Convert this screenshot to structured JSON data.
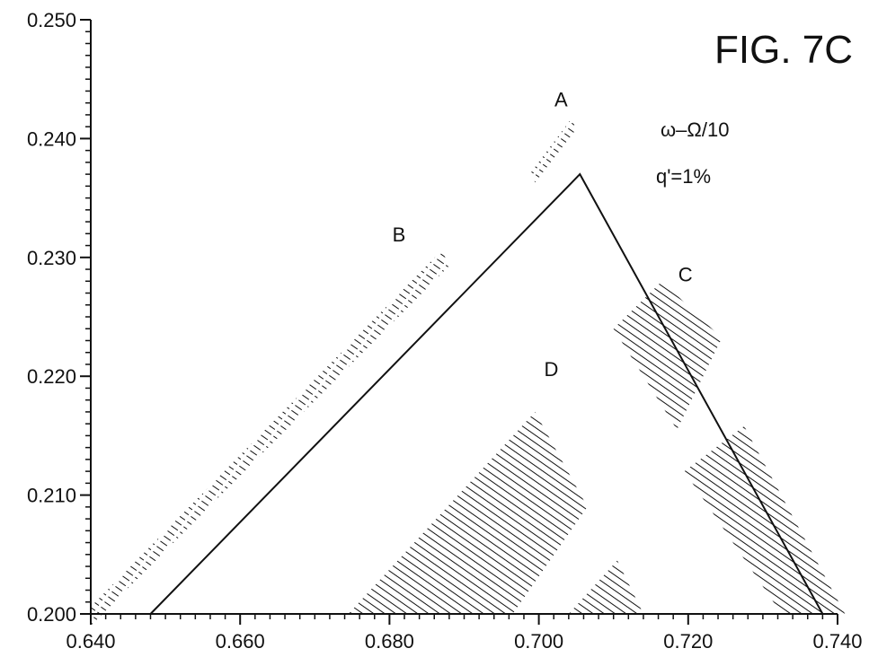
{
  "chart_data": {
    "type": "line",
    "title": "FIG. 7C",
    "xlabel": "",
    "ylabel": "",
    "xlim": [
      0.64,
      0.74
    ],
    "ylim": [
      0.2,
      0.25
    ],
    "xticks": [
      "0.640",
      "0.660",
      "0.680",
      "0.700",
      "0.720",
      "0.740"
    ],
    "yticks": [
      "0.200",
      "0.210",
      "0.220",
      "0.230",
      "0.240",
      "0.250"
    ],
    "grid": false,
    "annotations": [
      "ω–Ω/10",
      "q'=1%"
    ],
    "series": [
      {
        "x": [
          0.648,
          0.7055,
          0.738
        ],
        "y": [
          0.2,
          0.237,
          0.2
        ]
      }
    ],
    "regions": [
      {
        "name": "A",
        "hatch": "dashed",
        "polygon": [
          [
            0.699,
            0.2372
          ],
          [
            0.7045,
            0.2418
          ],
          [
            0.7049,
            0.2407
          ],
          [
            0.6995,
            0.2363
          ]
        ]
      },
      {
        "name": "B",
        "hatch": "dashed",
        "polygon": [
          [
            0.64,
            0.2006
          ],
          [
            0.687,
            0.2306
          ],
          [
            0.688,
            0.2293
          ],
          [
            0.64,
            0.199
          ]
        ]
      },
      {
        "name": "C",
        "hatch": "solid",
        "polygon": [
          [
            0.71,
            0.224
          ],
          [
            0.7165,
            0.228
          ],
          [
            0.7245,
            0.2232
          ],
          [
            0.7185,
            0.2155
          ]
        ]
      },
      {
        "name": "C",
        "hatch": "solid",
        "polygon": [
          [
            0.7195,
            0.212
          ],
          [
            0.7275,
            0.2158
          ],
          [
            0.741,
            0.2
          ],
          [
            0.7325,
            0.2
          ]
        ]
      },
      {
        "name": "D",
        "hatch": "solid",
        "polygon": [
          [
            0.6745,
            0.2
          ],
          [
            0.6995,
            0.217
          ],
          [
            0.7065,
            0.209
          ],
          [
            0.6965,
            0.2
          ]
        ]
      },
      {
        "name": "",
        "hatch": "solid",
        "polygon": [
          [
            0.704,
            0.2
          ],
          [
            0.7105,
            0.2045
          ],
          [
            0.714,
            0.2
          ]
        ]
      }
    ]
  }
}
